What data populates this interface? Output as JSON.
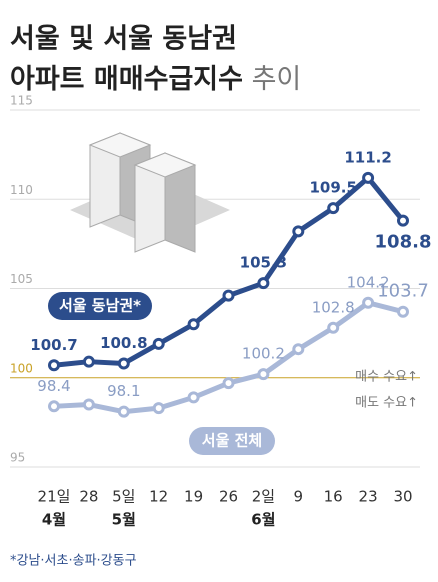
{
  "chart_data": {
    "type": "line",
    "title": [
      "서울 및 서울 동남권",
      "아파트 매매수급지수"
    ],
    "title_suffix": "추이",
    "categories": [
      "21일",
      "28",
      "5일",
      "12",
      "19",
      "26",
      "2일",
      "9",
      "16",
      "23",
      "30"
    ],
    "category_groups": [
      "4월",
      null,
      "5월",
      null,
      null,
      null,
      "6월",
      null,
      null,
      null,
      null
    ],
    "series": [
      {
        "name": "서울 동남권*",
        "color": "#2c4d8c",
        "values": [
          100.7,
          100.9,
          100.8,
          101.9,
          103.0,
          104.6,
          105.3,
          108.2,
          109.5,
          111.2,
          108.8
        ],
        "value_labels": [
          "100.7",
          null,
          "100.8",
          null,
          null,
          null,
          "105.3",
          null,
          "109.5",
          "111.2",
          "108.8"
        ]
      },
      {
        "name": "서울 전체",
        "color": "#a9b8d8",
        "values": [
          98.4,
          98.5,
          98.1,
          98.3,
          98.9,
          99.7,
          100.2,
          101.6,
          102.8,
          104.2,
          103.7
        ],
        "value_labels": [
          "98.4",
          null,
          "98.1",
          null,
          null,
          null,
          "100.2",
          null,
          "102.8",
          "104.2",
          "103.7"
        ]
      }
    ],
    "ylim": [
      95,
      115
    ],
    "yticks": [
      95,
      100,
      105,
      110,
      115
    ],
    "reference_line": 100,
    "reference_color": "#c9a227",
    "annotations": [
      "매수 수요↑",
      "매도 수요↑"
    ],
    "footnote": "*강남·서초·송파·강동구",
    "grid": true
  }
}
